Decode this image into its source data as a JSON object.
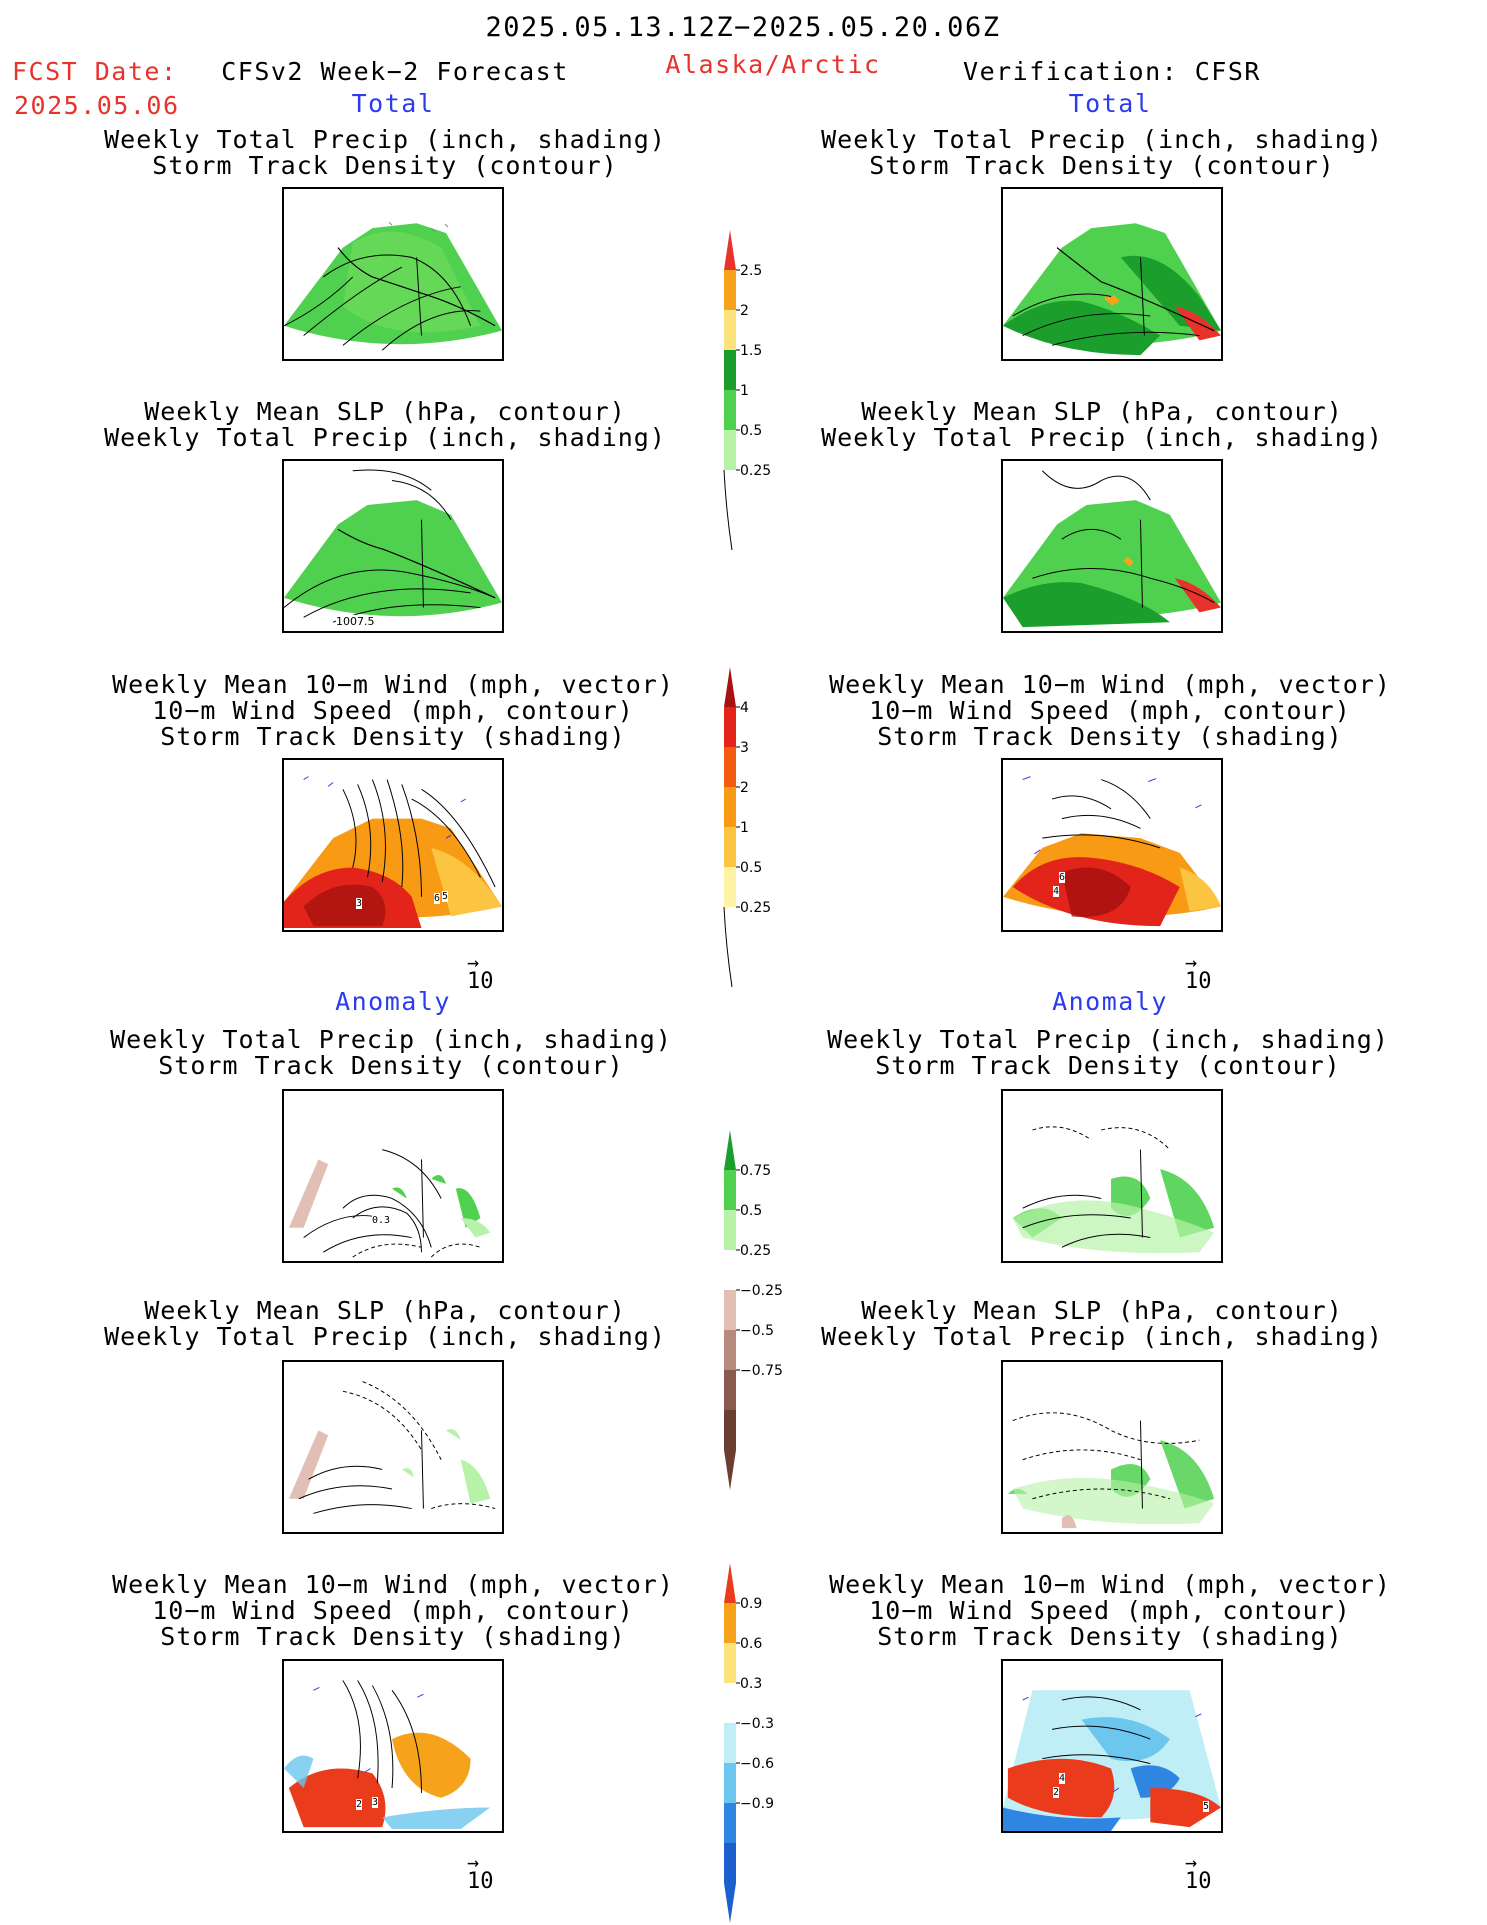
{
  "header": {
    "title": "2025.05.13.12Z−2025.05.20.06Z",
    "fcst_label": "FCST Date:",
    "fcst_date": "2025.05.06",
    "forecast_label": "CFSv2 Week−2 Forecast",
    "region": "Alaska/Arctic",
    "verification_label": "Verification: CFSR"
  },
  "sections": {
    "total": "Total",
    "anomaly": "Anomaly"
  },
  "titles": {
    "precip_storm_1": "Weekly Total Precip (inch, shading)",
    "precip_storm_2": "Storm Track Density (contour)",
    "slp_precip_1": "Weekly Mean SLP (hPa, contour)",
    "slp_precip_2": "Weekly Total Precip (inch, shading)",
    "wind_1": "Weekly Mean 10−m Wind (mph, vector)",
    "wind_2": "10−m Wind Speed (mph, contour)",
    "wind_3": "Storm Track Density (shading)"
  },
  "map_labels": {
    "slp_contour": "1007.5",
    "fc_total_wind_a": "3",
    "fc_total_wind_b": "6",
    "fc_total_wind_c": "5",
    "ob_total_wind_a": "6",
    "ob_total_wind_b": "4",
    "fc_anom_precip": "0.3",
    "fc_anom_wind_a": "2",
    "fc_anom_wind_b": "3",
    "ob_anom_wind_a": "4",
    "ob_anom_wind_b": "2",
    "ob_anom_wind_c": "5"
  },
  "vector_scale": "10",
  "colorbars": {
    "total_precip": {
      "labels": [
        "2.5",
        "2",
        "1.5",
        "1",
        "0.5",
        "0.25"
      ],
      "colors": [
        "#e8332c",
        "#f7a21b",
        "#fde37c",
        "#1b9e2c",
        "#4fd14f",
        "#b6f2a8"
      ]
    },
    "total_storm": {
      "labels": [
        "4",
        "3",
        "2",
        "1",
        "0.5",
        "0.25"
      ],
      "colors": [
        "#a7110f",
        "#e2241a",
        "#f35c0f",
        "#f99a14",
        "#fbc542",
        "#fdf3a4"
      ]
    },
    "anom_precip": {
      "labels": [
        "0.75",
        "0.5",
        "0.25",
        "−0.25",
        "−0.5",
        "−0.75"
      ],
      "colors": [
        "#1b9e2c",
        "#4fd14f",
        "#b6f2a8",
        "#ffffff",
        "#e2bfb4",
        "#b88a7c",
        "#8a5a4c",
        "#6b3e30"
      ]
    },
    "anom_storm": {
      "labels": [
        "0.9",
        "0.6",
        "0.3",
        "−0.3",
        "−0.6",
        "−0.9"
      ],
      "colors": [
        "#ea3b1c",
        "#f7a21b",
        "#fde37c",
        "#ffffff",
        "#bfeef7",
        "#6cc6ee",
        "#2f86e2",
        "#1c5fce"
      ]
    }
  }
}
